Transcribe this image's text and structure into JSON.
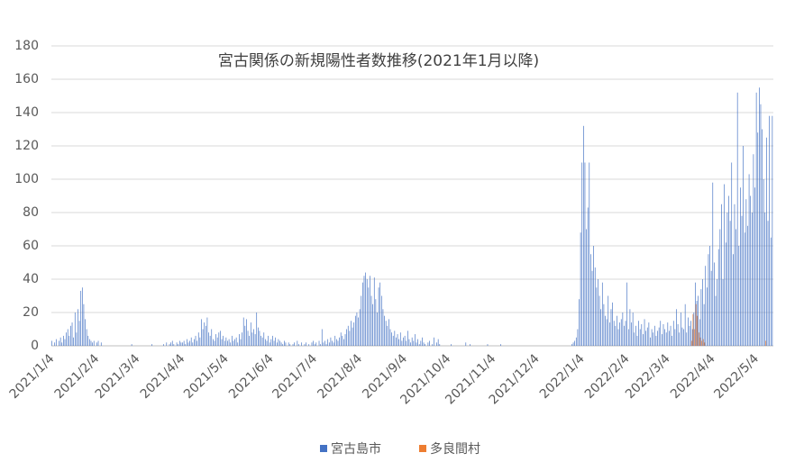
{
  "chart_data": {
    "type": "bar",
    "title": "宮古関係の新規陽性者数推移(2021年1月以降)",
    "categories": [
      "2021/1/4",
      null,
      null,
      null,
      null,
      null,
      null,
      null,
      null,
      null,
      null,
      null,
      null,
      null,
      null,
      null,
      null,
      null,
      null,
      null,
      null,
      null,
      null,
      null,
      null,
      null,
      null,
      null,
      null,
      null,
      null,
      "2021/2/4",
      null,
      null,
      null,
      null,
      null,
      null,
      null,
      null,
      null,
      null,
      null,
      null,
      null,
      null,
      null,
      null,
      null,
      null,
      null,
      null,
      null,
      null,
      null,
      null,
      null,
      null,
      null,
      "2021/3/4",
      null,
      null,
      null,
      null,
      null,
      null,
      null,
      null,
      null,
      null,
      null,
      null,
      null,
      null,
      null,
      null,
      null,
      null,
      null,
      null,
      null,
      null,
      null,
      null,
      null,
      null,
      null,
      null,
      null,
      null,
      "2021/4/4",
      null,
      null,
      null,
      null,
      null,
      null,
      null,
      null,
      null,
      null,
      null,
      null,
      null,
      null,
      null,
      null,
      null,
      null,
      null,
      null,
      null,
      null,
      null,
      null,
      null,
      null,
      null,
      null,
      null,
      "2021/5/4",
      null,
      null,
      null,
      null,
      null,
      null,
      null,
      null,
      null,
      null,
      null,
      null,
      null,
      null,
      null,
      null,
      null,
      null,
      null,
      null,
      null,
      null,
      null,
      null,
      null,
      null,
      null,
      null,
      null,
      null,
      "2021/6/4",
      null,
      null,
      null,
      null,
      null,
      null,
      null,
      null,
      null,
      null,
      null,
      null,
      null,
      null,
      null,
      null,
      null,
      null,
      null,
      null,
      null,
      null,
      null,
      null,
      null,
      null,
      null,
      null,
      null,
      "2021/7/4",
      null,
      null,
      null,
      null,
      null,
      null,
      null,
      null,
      null,
      null,
      null,
      null,
      null,
      null,
      null,
      null,
      null,
      null,
      null,
      null,
      null,
      null,
      null,
      null,
      null,
      null,
      null,
      null,
      null,
      null,
      "2021/8/4",
      null,
      null,
      null,
      null,
      null,
      null,
      null,
      null,
      null,
      null,
      null,
      null,
      null,
      null,
      null,
      null,
      null,
      null,
      null,
      null,
      null,
      null,
      null,
      null,
      null,
      null,
      null,
      null,
      null,
      null,
      "2021/9/4",
      null,
      null,
      null,
      null,
      null,
      null,
      null,
      null,
      null,
      null,
      null,
      null,
      null,
      null,
      null,
      null,
      null,
      null,
      null,
      null,
      null,
      null,
      null,
      null,
      null,
      null,
      null,
      null,
      null,
      "2021/10/4",
      null,
      null,
      null,
      null,
      null,
      null,
      null,
      null,
      null,
      null,
      null,
      null,
      null,
      null,
      null,
      null,
      null,
      null,
      null,
      null,
      null,
      null,
      null,
      null,
      null,
      null,
      null,
      null,
      null,
      null,
      "2021/11/4",
      null,
      null,
      null,
      null,
      null,
      null,
      null,
      null,
      null,
      null,
      null,
      null,
      null,
      null,
      null,
      null,
      null,
      null,
      null,
      null,
      null,
      null,
      null,
      null,
      null,
      null,
      null,
      null,
      null,
      "2021/12/4",
      null,
      null,
      null,
      null,
      null,
      null,
      null,
      null,
      null,
      null,
      null,
      null,
      null,
      null,
      null,
      null,
      null,
      null,
      null,
      null,
      null,
      null,
      null,
      null,
      null,
      null,
      null,
      null,
      null,
      null,
      "2022/1/4",
      null,
      null,
      null,
      null,
      null,
      null,
      null,
      null,
      null,
      null,
      null,
      null,
      null,
      null,
      null,
      null,
      null,
      null,
      null,
      null,
      null,
      null,
      null,
      null,
      null,
      null,
      null,
      null,
      null,
      null,
      "2022/2/4",
      null,
      null,
      null,
      null,
      null,
      null,
      null,
      null,
      null,
      null,
      null,
      null,
      null,
      null,
      null,
      null,
      null,
      null,
      null,
      null,
      null,
      null,
      null,
      null,
      null,
      null,
      null,
      "2022/3/4",
      null,
      null,
      null,
      null,
      null,
      null,
      null,
      null,
      null,
      null,
      null,
      null,
      null,
      null,
      null,
      null,
      null,
      null,
      null,
      null,
      null,
      null,
      null,
      null,
      null,
      null,
      null,
      null,
      null,
      null,
      "2022/4/4",
      null,
      null,
      null,
      null,
      null,
      null,
      null,
      null,
      null,
      null,
      null,
      null,
      null,
      null,
      null,
      null,
      null,
      null,
      null,
      null,
      null,
      null,
      null,
      null,
      null,
      null,
      null,
      null,
      null,
      "2022/5/4",
      null,
      null,
      null,
      null,
      null,
      null,
      null,
      null,
      null,
      null,
      null
    ],
    "series": [
      {
        "name": "宮古島市",
        "color": "#4472c4",
        "values": [
          3,
          0,
          2,
          4,
          0,
          3,
          5,
          2,
          6,
          4,
          8,
          10,
          6,
          12,
          14,
          5,
          20,
          8,
          22,
          15,
          33,
          35,
          25,
          16,
          10,
          6,
          4,
          3,
          2,
          3,
          0,
          2,
          3,
          0,
          2,
          0,
          0,
          0,
          0,
          0,
          0,
          0,
          0,
          0,
          0,
          0,
          0,
          0,
          0,
          0,
          0,
          0,
          0,
          0,
          0,
          1,
          0,
          0,
          0,
          0,
          0,
          0,
          0,
          0,
          0,
          0,
          0,
          0,
          0,
          1,
          0,
          0,
          0,
          0,
          0,
          0,
          0,
          1,
          0,
          2,
          0,
          1,
          2,
          3,
          1,
          0,
          2,
          1,
          3,
          2,
          2,
          3,
          1,
          4,
          2,
          3,
          5,
          2,
          4,
          6,
          3,
          8,
          5,
          16,
          10,
          14,
          12,
          17,
          8,
          6,
          10,
          4,
          3,
          7,
          5,
          8,
          9,
          4,
          6,
          3,
          5,
          3,
          4,
          2,
          6,
          3,
          4,
          5,
          2,
          7,
          4,
          8,
          17,
          12,
          16,
          9,
          6,
          14,
          8,
          10,
          7,
          20,
          11,
          9,
          6,
          5,
          8,
          4,
          3,
          6,
          2,
          4,
          6,
          3,
          5,
          2,
          4,
          3,
          2,
          1,
          3,
          2,
          0,
          2,
          1,
          0,
          1,
          2,
          0,
          3,
          1,
          0,
          2,
          0,
          1,
          2,
          0,
          1,
          0,
          2,
          3,
          1,
          2,
          0,
          3,
          1,
          10,
          2,
          3,
          1,
          4,
          2,
          5,
          3,
          2,
          6,
          4,
          3,
          5,
          8,
          6,
          4,
          7,
          10,
          12,
          9,
          15,
          11,
          14,
          18,
          20,
          17,
          22,
          30,
          38,
          42,
          44,
          40,
          35,
          42,
          30,
          25,
          41,
          28,
          20,
          35,
          38,
          30,
          22,
          18,
          15,
          12,
          16,
          10,
          8,
          6,
          9,
          5,
          7,
          4,
          8,
          3,
          5,
          6,
          3,
          9,
          4,
          2,
          5,
          3,
          7,
          2,
          4,
          1,
          3,
          5,
          2,
          1,
          0,
          2,
          3,
          0,
          1,
          5,
          0,
          2,
          4,
          1,
          0,
          0,
          0,
          0,
          0,
          0,
          0,
          1,
          0,
          0,
          0,
          0,
          0,
          0,
          0,
          0,
          0,
          2,
          0,
          0,
          1,
          0,
          0,
          0,
          0,
          0,
          0,
          0,
          0,
          0,
          0,
          0,
          1,
          0,
          0,
          0,
          0,
          0,
          0,
          0,
          0,
          1,
          0,
          0,
          0,
          0,
          0,
          0,
          0,
          0,
          0,
          0,
          0,
          0,
          0,
          0,
          0,
          0,
          0,
          0,
          0,
          0,
          0,
          0,
          0,
          0,
          0,
          0,
          0,
          0,
          0,
          0,
          0,
          0,
          0,
          0,
          0,
          0,
          0,
          0,
          0,
          0,
          0,
          0,
          0,
          0,
          0,
          0,
          0,
          0,
          1,
          2,
          3,
          5,
          10,
          28,
          68,
          110,
          132,
          110,
          70,
          83,
          110,
          55,
          45,
          60,
          47,
          35,
          40,
          30,
          22,
          38,
          25,
          18,
          16,
          30,
          14,
          22,
          26,
          15,
          12,
          18,
          10,
          14,
          16,
          20,
          12,
          15,
          38,
          10,
          22,
          14,
          20,
          8,
          12,
          6,
          15,
          10,
          13,
          7,
          16,
          9,
          11,
          14,
          5,
          10,
          8,
          12,
          6,
          9,
          11,
          15,
          7,
          13,
          10,
          8,
          14,
          9,
          12,
          6,
          15,
          10,
          22,
          13,
          8,
          20,
          11,
          10,
          25,
          8,
          17,
          12,
          15,
          10,
          20,
          38,
          27,
          30,
          16,
          34,
          40,
          25,
          48,
          35,
          55,
          60,
          45,
          98,
          50,
          30,
          40,
          58,
          70,
          85,
          40,
          97,
          62,
          80,
          90,
          75,
          110,
          55,
          85,
          70,
          152,
          60,
          95,
          78,
          120,
          68,
          88,
          72,
          103,
          90,
          80,
          115,
          95,
          152,
          128,
          155,
          145,
          130,
          100,
          80,
          125,
          75,
          138,
          65,
          138
        ]
      },
      {
        "name": "多良間村",
        "color": "#ed7d31",
        "values": [
          0,
          0,
          0,
          0,
          0,
          0,
          0,
          0,
          0,
          0,
          0,
          0,
          0,
          0,
          0,
          0,
          0,
          0,
          0,
          0,
          0,
          0,
          0,
          0,
          0,
          0,
          0,
          0,
          0,
          0,
          0,
          0,
          0,
          0,
          0,
          0,
          0,
          0,
          0,
          0,
          0,
          0,
          0,
          0,
          0,
          0,
          0,
          0,
          0,
          0,
          0,
          0,
          0,
          0,
          0,
          0,
          0,
          0,
          0,
          0,
          0,
          0,
          0,
          0,
          0,
          0,
          0,
          0,
          0,
          0,
          0,
          0,
          0,
          0,
          0,
          0,
          0,
          0,
          0,
          0,
          0,
          0,
          0,
          0,
          0,
          0,
          0,
          0,
          0,
          0,
          0,
          0,
          0,
          0,
          0,
          0,
          0,
          0,
          0,
          0,
          0,
          0,
          0,
          0,
          0,
          0,
          0,
          0,
          0,
          0,
          0,
          0,
          0,
          0,
          0,
          0,
          0,
          0,
          0,
          0,
          0,
          0,
          0,
          0,
          0,
          0,
          0,
          0,
          0,
          0,
          0,
          0,
          0,
          0,
          0,
          0,
          0,
          0,
          0,
          0,
          0,
          0,
          0,
          0,
          0,
          0,
          0,
          0,
          0,
          0,
          0,
          0,
          0,
          0,
          0,
          0,
          0,
          0,
          0,
          0,
          0,
          0,
          0,
          0,
          0,
          0,
          0,
          0,
          0,
          0,
          0,
          0,
          0,
          0,
          0,
          0,
          0,
          0,
          0,
          0,
          0,
          0,
          0,
          0,
          0,
          0,
          0,
          0,
          0,
          0,
          0,
          0,
          0,
          0,
          0,
          0,
          0,
          0,
          0,
          0,
          0,
          0,
          0,
          0,
          0,
          0,
          0,
          0,
          0,
          0,
          0,
          0,
          0,
          0,
          0,
          0,
          0,
          0,
          0,
          0,
          0,
          0,
          0,
          0,
          0,
          0,
          0,
          0,
          0,
          0,
          0,
          0,
          0,
          0,
          0,
          0,
          0,
          0,
          0,
          0,
          0,
          0,
          0,
          0,
          0,
          0,
          0,
          0,
          0,
          0,
          0,
          0,
          0,
          0,
          0,
          0,
          0,
          0,
          0,
          0,
          0,
          0,
          0,
          0,
          0,
          0,
          0,
          0,
          0,
          0,
          0,
          0,
          0,
          0,
          0,
          0,
          0,
          0,
          0,
          0,
          0,
          0,
          0,
          0,
          0,
          0,
          0,
          0,
          0,
          0,
          0,
          0,
          0,
          0,
          0,
          0,
          0,
          0,
          0,
          0,
          0,
          0,
          0,
          0,
          0,
          0,
          0,
          0,
          0,
          0,
          0,
          0,
          0,
          0,
          0,
          0,
          0,
          0,
          0,
          0,
          0,
          0,
          0,
          0,
          0,
          0,
          0,
          0,
          0,
          0,
          0,
          0,
          0,
          0,
          0,
          0,
          0,
          0,
          0,
          0,
          0,
          0,
          0,
          0,
          0,
          0,
          0,
          0,
          0,
          0,
          0,
          0,
          0,
          0,
          0,
          0,
          0,
          0,
          0,
          0,
          0,
          0,
          0,
          0,
          0,
          0,
          0,
          0,
          0,
          0,
          0,
          0,
          0,
          0,
          0,
          0,
          0,
          0,
          0,
          0,
          0,
          0,
          0,
          0,
          0,
          0,
          0,
          0,
          0,
          0,
          0,
          0,
          0,
          0,
          0,
          0,
          0,
          0,
          0,
          0,
          0,
          0,
          0,
          0,
          0,
          0,
          0,
          0,
          0,
          0,
          0,
          0,
          0,
          0,
          0,
          0,
          0,
          0,
          0,
          0,
          0,
          0,
          0,
          0,
          0,
          0,
          0,
          0,
          0,
          0,
          0,
          0,
          0,
          0,
          0,
          0,
          0,
          0,
          0,
          0,
          3,
          19,
          10,
          25,
          18,
          8,
          5,
          3,
          4,
          2,
          0,
          0,
          0,
          0,
          0,
          0,
          0,
          0,
          0,
          0,
          0,
          0,
          0,
          0,
          0,
          0,
          0,
          0,
          0,
          0,
          0,
          0,
          0,
          0,
          0,
          0,
          0,
          0,
          0,
          0,
          0,
          0,
          0,
          0,
          0,
          0,
          0,
          0,
          0,
          0,
          0,
          3,
          0,
          0,
          0,
          0,
          0
        ]
      }
    ],
    "ylim": [
      0,
      180
    ],
    "yticks": [
      0,
      20,
      40,
      60,
      80,
      100,
      120,
      140,
      160,
      180
    ],
    "grid": true,
    "legend": "bottom"
  }
}
